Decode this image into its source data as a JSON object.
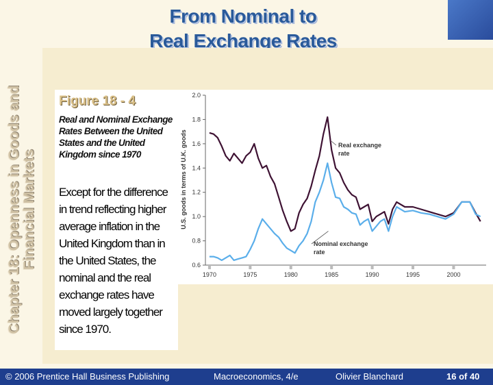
{
  "slide": {
    "title_line1": "From Nominal to",
    "title_line2": "Real Exchange Rates",
    "side_line1": "Chapter 18: Openness in Goods and",
    "side_line2": "Financial Markets"
  },
  "figure": {
    "label": "Figure 18 - 4",
    "subtitle": "Real and Nominal Exchange Rates Between the United States and the United Kingdom since 1970",
    "body": "Except for the difference in trend reflecting higher average inflation in the United Kingdom than in the United States, the nominal and the real exchange rates have moved largely together since 1970."
  },
  "footer": {
    "copyright": "© 2006 Prentice Hall Business Publishing",
    "book": "Macroeconomics, 4/e",
    "author": "Olivier Blanchard",
    "page": "16 of 40"
  },
  "colors": {
    "real": "#3e1233",
    "nominal": "#5aaeea",
    "footer_bg": "#1e3e8e",
    "title": "#2a5a9a"
  },
  "chart_data": {
    "type": "line",
    "ylabel": "U.S. goods in terms of U.K. goods",
    "xlim": [
      1969.5,
      2004
    ],
    "ylim": [
      0.6,
      2.0
    ],
    "xticks": [
      1970,
      1975,
      1980,
      1985,
      1990,
      1995,
      2000
    ],
    "yticks": [
      "0.6",
      "0.8",
      "1.0",
      "1.2",
      "1.4",
      "1.6",
      "1.8",
      "2.0"
    ],
    "series": [
      {
        "name": "Real exchange rate",
        "label_lines": [
          "Real exchange",
          "rate"
        ],
        "x": [
          1970,
          1970.5,
          1971,
          1971.5,
          1972,
          1972.5,
          1973,
          1973.5,
          1974,
          1974.5,
          1975,
          1975.5,
          1976,
          1976.5,
          1977,
          1977.5,
          1978,
          1978.5,
          1979,
          1979.5,
          1980,
          1980.5,
          1981,
          1981.5,
          1982,
          1982.5,
          1983,
          1983.5,
          1984,
          1984.5,
          1985,
          1985.5,
          1986,
          1986.5,
          1987,
          1987.5,
          1988,
          1988.5,
          1989,
          1989.5,
          1990,
          1990.5,
          1991,
          1991.5,
          1992,
          1992.5,
          1993,
          1994,
          1995,
          1996,
          1997,
          1998,
          1999,
          2000,
          2001,
          2002,
          2002.7,
          2003.3
        ],
        "values": [
          1.69,
          1.68,
          1.65,
          1.58,
          1.5,
          1.46,
          1.52,
          1.48,
          1.44,
          1.5,
          1.53,
          1.6,
          1.48,
          1.4,
          1.42,
          1.33,
          1.27,
          1.16,
          1.05,
          0.96,
          0.88,
          0.9,
          1.03,
          1.1,
          1.15,
          1.25,
          1.38,
          1.5,
          1.68,
          1.82,
          1.55,
          1.4,
          1.36,
          1.28,
          1.22,
          1.18,
          1.16,
          1.06,
          1.08,
          1.1,
          0.96,
          1.0,
          1.02,
          1.04,
          0.94,
          1.06,
          1.12,
          1.08,
          1.08,
          1.06,
          1.04,
          1.02,
          1.0,
          1.03,
          1.12,
          1.12,
          1.03,
          0.96
        ]
      },
      {
        "name": "Nominal exchange rate",
        "label_lines": [
          "Nominal exchange",
          "rate"
        ],
        "x": [
          1970,
          1970.5,
          1971,
          1971.5,
          1972,
          1972.5,
          1973,
          1973.5,
          1974,
          1974.5,
          1975,
          1975.5,
          1976,
          1976.5,
          1977,
          1977.5,
          1978,
          1978.5,
          1979,
          1979.5,
          1980,
          1980.5,
          1981,
          1981.5,
          1982,
          1982.5,
          1983,
          1983.5,
          1984,
          1984.5,
          1985,
          1985.5,
          1986,
          1986.5,
          1987,
          1987.5,
          1988,
          1988.5,
          1989,
          1989.5,
          1990,
          1990.5,
          1991,
          1991.5,
          1992,
          1992.5,
          1993,
          1994,
          1995,
          1996,
          1997,
          1998,
          1999,
          2000,
          2001,
          2002,
          2002.7,
          2003.3
        ],
        "values": [
          0.67,
          0.67,
          0.66,
          0.64,
          0.66,
          0.68,
          0.64,
          0.65,
          0.66,
          0.67,
          0.73,
          0.8,
          0.9,
          0.98,
          0.94,
          0.9,
          0.86,
          0.83,
          0.78,
          0.74,
          0.72,
          0.7,
          0.76,
          0.8,
          0.86,
          0.96,
          1.12,
          1.2,
          1.3,
          1.44,
          1.28,
          1.16,
          1.15,
          1.08,
          1.06,
          1.03,
          1.02,
          0.93,
          0.96,
          0.98,
          0.88,
          0.92,
          0.96,
          0.98,
          0.88,
          1.0,
          1.08,
          1.04,
          1.05,
          1.03,
          1.02,
          1.0,
          0.98,
          1.02,
          1.12,
          1.12,
          1.02,
          1.0
        ]
      }
    ]
  }
}
